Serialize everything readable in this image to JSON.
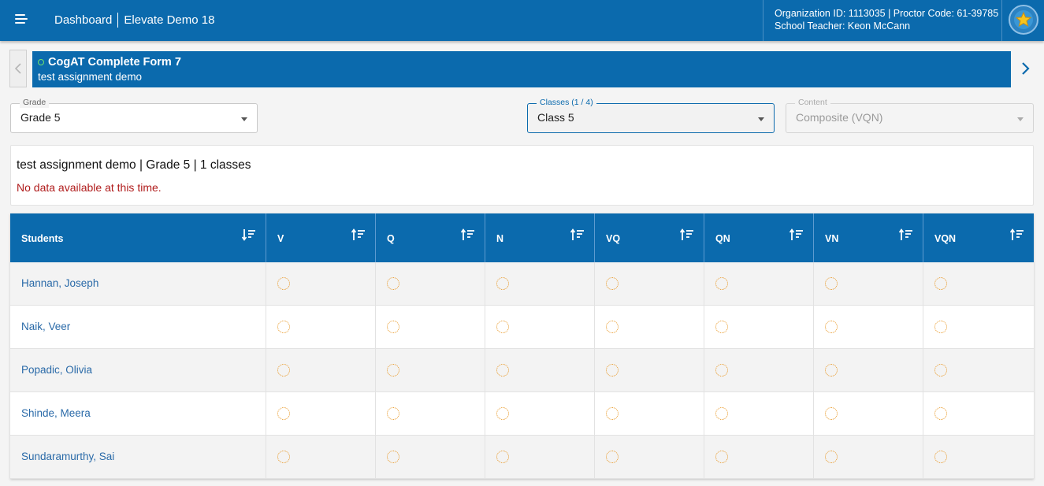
{
  "header": {
    "menu_icon": "hamburger-menu-icon",
    "breadcrumb_home": "Dashboard",
    "breadcrumb_current": "Elevate Demo 18",
    "org_line": "Organization ID: 1113035 | Proctor Code: 61-39785",
    "teacher_prefix": "School Teacher: ",
    "teacher_name": "Keon McCann",
    "avatar_icon": "star-badge-icon"
  },
  "banner": {
    "title": "CogAT Complete Form 7",
    "subtitle": "test assignment demo",
    "status_color": "#6fe36f"
  },
  "filters": {
    "grade": {
      "label": "Grade",
      "value": "Grade 5"
    },
    "classes": {
      "label": "Classes (1 / 4)",
      "value": "Class 5"
    },
    "content": {
      "label": "Content",
      "value": "Composite (VQN)"
    }
  },
  "summary": {
    "text": "test assignment demo | Grade 5 | 1 classes",
    "message": "No data available at this time."
  },
  "table": {
    "columns": [
      "Students",
      "V",
      "Q",
      "N",
      "VQ",
      "QN",
      "VN",
      "VQN"
    ],
    "rows": [
      {
        "student": "Hannan, Joseph",
        "status": "pending"
      },
      {
        "student": "Naik, Veer",
        "status": "pending"
      },
      {
        "student": "Popadic, Olivia",
        "status": "pending"
      },
      {
        "student": "Shinde, Meera",
        "status": "pending"
      },
      {
        "student": "Sundaramurthy, Sai",
        "status": "pending"
      }
    ]
  },
  "colors": {
    "primary": "#0b6aad",
    "error": "#b01c1c",
    "pending": "#e8951f",
    "link": "#2a6aa8"
  }
}
